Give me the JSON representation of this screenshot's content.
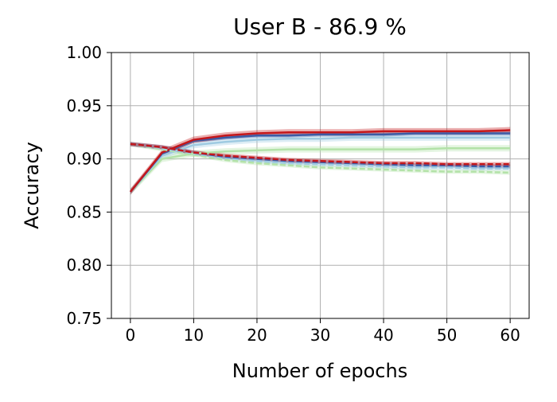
{
  "chart_data": {
    "type": "line",
    "title": "User B - 86.9 %",
    "xlabel": "Number of epochs",
    "ylabel": "Accuracy",
    "xlim": [
      -3,
      63
    ],
    "ylim": [
      0.75,
      1.0
    ],
    "xticks": [
      0,
      10,
      20,
      30,
      40,
      50,
      60
    ],
    "yticks": [
      0.75,
      0.8,
      0.85,
      0.9,
      0.95,
      1.0
    ],
    "xtick_labels": [
      "0",
      "10",
      "20",
      "30",
      "40",
      "50",
      "60"
    ],
    "ytick_labels": [
      "0.75",
      "0.80",
      "0.85",
      "0.90",
      "0.95",
      "1.00"
    ],
    "grid": true,
    "x": [
      0,
      5,
      10,
      15,
      20,
      25,
      30,
      35,
      40,
      45,
      50,
      55,
      60
    ],
    "series": [
      {
        "color": "#b3e2a8",
        "dash": false,
        "band": 0.003,
        "values": [
          0.869,
          0.9,
          0.905,
          0.907,
          0.908,
          0.909,
          0.909,
          0.909,
          0.909,
          0.909,
          0.91,
          0.91,
          0.91
        ]
      },
      {
        "color": "#9ecae1",
        "dash": false,
        "band": 0.003,
        "values": [
          0.869,
          0.903,
          0.913,
          0.916,
          0.918,
          0.919,
          0.919,
          0.92,
          0.92,
          0.92,
          0.92,
          0.92,
          0.92
        ]
      },
      {
        "color": "#3b5ba5",
        "dash": false,
        "band": 0.002,
        "values": [
          0.869,
          0.905,
          0.917,
          0.92,
          0.922,
          0.922,
          0.923,
          0.923,
          0.923,
          0.924,
          0.924,
          0.924,
          0.924
        ]
      },
      {
        "color": "#c4171b",
        "dash": false,
        "band": 0.003,
        "values": [
          0.869,
          0.906,
          0.918,
          0.922,
          0.924,
          0.925,
          0.925,
          0.925,
          0.926,
          0.926,
          0.926,
          0.926,
          0.927
        ]
      },
      {
        "color": "#b3e2a8",
        "dash": true,
        "band": 0.002,
        "values": [
          0.914,
          0.909,
          0.904,
          0.899,
          0.896,
          0.894,
          0.892,
          0.891,
          0.89,
          0.889,
          0.888,
          0.888,
          0.887
        ]
      },
      {
        "color": "#9ecae1",
        "dash": true,
        "band": 0.002,
        "values": [
          0.914,
          0.91,
          0.905,
          0.901,
          0.898,
          0.896,
          0.895,
          0.894,
          0.893,
          0.892,
          0.892,
          0.891,
          0.891
        ]
      },
      {
        "color": "#3b5ba5",
        "dash": true,
        "band": 0.002,
        "values": [
          0.914,
          0.911,
          0.906,
          0.902,
          0.9,
          0.898,
          0.897,
          0.896,
          0.895,
          0.894,
          0.894,
          0.893,
          0.893
        ]
      },
      {
        "color": "#c4171b",
        "dash": true,
        "band": 0.002,
        "values": [
          0.914,
          0.911,
          0.906,
          0.903,
          0.901,
          0.899,
          0.898,
          0.897,
          0.896,
          0.896,
          0.895,
          0.895,
          0.895
        ]
      }
    ]
  }
}
